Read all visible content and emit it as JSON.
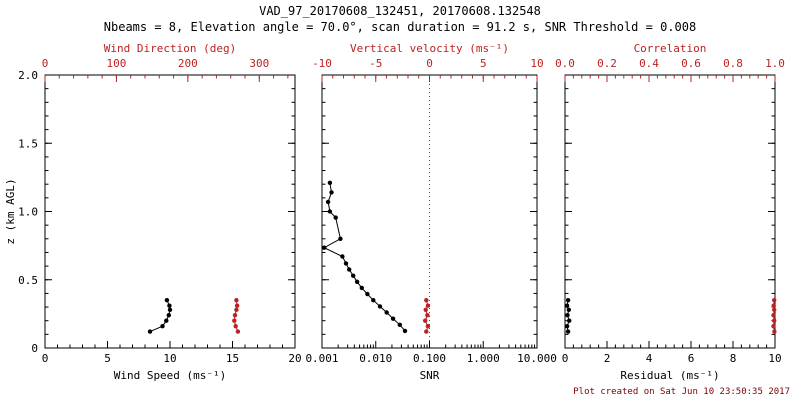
{
  "title": "VAD_97_20170608_132451, 20170608.132548",
  "subtitle": "Nbeams = 8, Elevation angle = 70.0°, scan duration = 91.2 s, SNR Threshold = 0.008",
  "footer": "Plot created on Sat Jun 10 23:50:35 2017",
  "colors": {
    "black": "#000000",
    "red": "#bb2222"
  },
  "chart_data": [
    {
      "id": "wind-speed",
      "type": "scatter",
      "xlabel": "Wind Speed (ms⁻¹)",
      "top_xlabel": "Wind Direction (deg)",
      "ylabel": "z (km AGL)",
      "xlim": [
        0,
        20
      ],
      "xticks": [
        0,
        5,
        10,
        15,
        20
      ],
      "xtick_labels": [
        "0",
        "5",
        "10",
        "15",
        "20"
      ],
      "top_xlim": [
        0,
        350
      ],
      "top_xticks": [
        0,
        100,
        200,
        300
      ],
      "top_xtick_labels": [
        "0",
        "100",
        "200",
        "300"
      ],
      "ylim": [
        0,
        2
      ],
      "yticks": [
        0,
        0.5,
        1.0,
        1.5,
        2.0
      ],
      "ytick_labels": [
        "0",
        "0.5",
        "1.0",
        "1.5",
        "2.0"
      ],
      "show_ylabels": true,
      "grid": false,
      "series": [
        {
          "name": "wind-speed",
          "color": "#000000",
          "axis": "bottom",
          "points": [
            [
              8.4,
              0.12
            ],
            [
              9.4,
              0.16
            ],
            [
              9.7,
              0.2
            ],
            [
              9.9,
              0.24
            ],
            [
              10.0,
              0.28
            ],
            [
              9.95,
              0.31
            ],
            [
              9.75,
              0.35
            ]
          ]
        },
        {
          "name": "wind-direction",
          "color": "#bb2222",
          "axis": "top",
          "points": [
            [
              270,
              0.12
            ],
            [
              267,
              0.16
            ],
            [
              265,
              0.2
            ],
            [
              266,
              0.24
            ],
            [
              268,
              0.28
            ],
            [
              269,
              0.31
            ],
            [
              268,
              0.35
            ]
          ]
        }
      ]
    },
    {
      "id": "snr",
      "type": "scatter",
      "xlabel": "SNR",
      "top_xlabel": "Vertical velocity (ms⁻¹)",
      "ylabel": "",
      "xscale": "log",
      "xlim": [
        0.001,
        10
      ],
      "xticks": [
        0.001,
        0.01,
        0.1,
        1,
        10
      ],
      "xtick_labels": [
        "0.001",
        "0.010",
        "0.100",
        "1.000",
        "10.000"
      ],
      "top_xlim": [
        -10,
        10
      ],
      "top_xticks": [
        -10,
        -5,
        0,
        5,
        10
      ],
      "top_xtick_labels": [
        "-10",
        "-5",
        "0",
        "5",
        "10"
      ],
      "ylim": [
        0,
        2
      ],
      "yticks": [
        0,
        0.5,
        1.0,
        1.5,
        2.0
      ],
      "ytick_labels": [
        "0",
        "0.5",
        "1.0",
        "1.5",
        "2.0"
      ],
      "show_ylabels": false,
      "grid": false,
      "vline": {
        "x_top": 0,
        "color": "#bb2222",
        "style": "dotted"
      },
      "series": [
        {
          "name": "snr",
          "color": "#000000",
          "axis": "bottom",
          "points": [
            [
              0.0014,
              1.21
            ],
            [
              0.0015,
              1.14
            ],
            [
              0.0013,
              1.07
            ],
            [
              0.0014,
              1.0
            ],
            [
              0.0018,
              0.955
            ],
            [
              0.0022,
              0.8
            ],
            [
              0.0011,
              0.735
            ],
            [
              0.0024,
              0.67
            ],
            [
              0.0028,
              0.62
            ],
            [
              0.0032,
              0.575
            ],
            [
              0.0038,
              0.53
            ],
            [
              0.0045,
              0.485
            ],
            [
              0.0055,
              0.44
            ],
            [
              0.007,
              0.395
            ],
            [
              0.009,
              0.35
            ],
            [
              0.012,
              0.305
            ],
            [
              0.016,
              0.26
            ],
            [
              0.021,
              0.215
            ],
            [
              0.028,
              0.17
            ],
            [
              0.035,
              0.125
            ]
          ]
        },
        {
          "name": "vertical-velocity",
          "color": "#bb2222",
          "axis": "top",
          "points": [
            [
              -0.3,
              0.12
            ],
            [
              -0.15,
              0.16
            ],
            [
              -0.4,
              0.2
            ],
            [
              -0.2,
              0.24
            ],
            [
              -0.35,
              0.28
            ],
            [
              -0.15,
              0.31
            ],
            [
              -0.3,
              0.35
            ]
          ]
        }
      ]
    },
    {
      "id": "residual",
      "type": "scatter",
      "xlabel": "Residual (ms⁻¹)",
      "top_xlabel": "Correlation",
      "ylabel": "",
      "xlim": [
        0,
        10
      ],
      "xticks": [
        0,
        2,
        4,
        6,
        8,
        10
      ],
      "xtick_labels": [
        "0",
        "2",
        "4",
        "6",
        "8",
        "10"
      ],
      "top_xlim": [
        0,
        1
      ],
      "top_xticks": [
        0,
        0.2,
        0.4,
        0.6,
        0.8,
        1.0
      ],
      "top_xtick_labels": [
        "0.0",
        "0.2",
        "0.4",
        "0.6",
        "0.8",
        "1.0"
      ],
      "ylim": [
        0,
        2
      ],
      "yticks": [
        0,
        0.5,
        1.0,
        1.5,
        2.0
      ],
      "ytick_labels": [
        "0",
        "0.5",
        "1.0",
        "1.5",
        "2.0"
      ],
      "show_ylabels": false,
      "grid": false,
      "series": [
        {
          "name": "residual",
          "color": "#000000",
          "axis": "bottom",
          "points": [
            [
              0.15,
              0.12
            ],
            [
              0.1,
              0.16
            ],
            [
              0.2,
              0.2
            ],
            [
              0.12,
              0.24
            ],
            [
              0.18,
              0.28
            ],
            [
              0.1,
              0.31
            ],
            [
              0.15,
              0.35
            ]
          ]
        },
        {
          "name": "correlation",
          "color": "#bb2222",
          "axis": "top",
          "points": [
            [
              0.997,
              0.12
            ],
            [
              0.993,
              0.16
            ],
            [
              0.996,
              0.2
            ],
            [
              0.993,
              0.24
            ],
            [
              0.996,
              0.28
            ],
            [
              0.994,
              0.31
            ],
            [
              0.996,
              0.35
            ]
          ]
        }
      ]
    }
  ]
}
